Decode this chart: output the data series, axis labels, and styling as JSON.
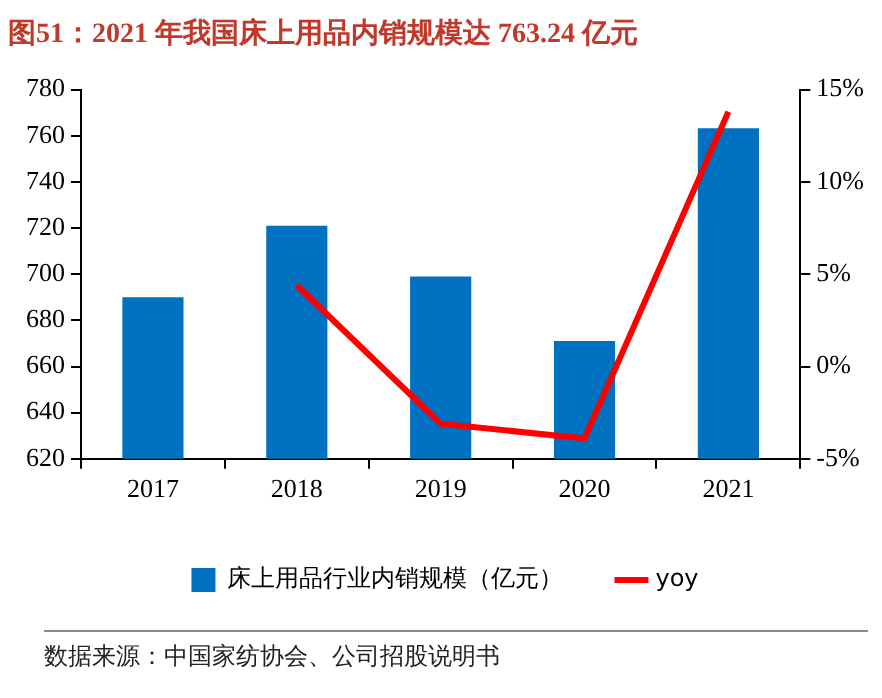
{
  "chart_data": {
    "type": "bar",
    "title": "图51：2021 年我国床上用品内销规模达 763.24 亿元",
    "categories": [
      "2017",
      "2018",
      "2019",
      "2020",
      "2021"
    ],
    "series": [
      {
        "name": "床上用品行业内销规模（亿元）",
        "color": "#0070c0",
        "values": [
          690,
          721,
          699,
          671,
          763.24
        ]
      },
      {
        "name": "yoy",
        "type": "line",
        "axis": "y2",
        "color": "#ff0000",
        "values": [
          null,
          4.4,
          -3.1,
          -3.9,
          13.8
        ]
      }
    ],
    "ylim": [
      620,
      780
    ],
    "yticks": [
      620,
      640,
      660,
      680,
      700,
      720,
      740,
      760,
      780
    ],
    "y2lim": [
      -5,
      15
    ],
    "y2ticks": [
      {
        "value": -5,
        "label": "-5%"
      },
      {
        "value": 0,
        "label": "0%"
      },
      {
        "value": 5,
        "label": "5%"
      },
      {
        "value": 10,
        "label": "10%"
      },
      {
        "value": 15,
        "label": "15%"
      }
    ],
    "grid": false,
    "legend": "bottom",
    "marker": "none",
    "annotations": [
      "数据来源：中国家纺协会、公司招股说明书"
    ]
  }
}
